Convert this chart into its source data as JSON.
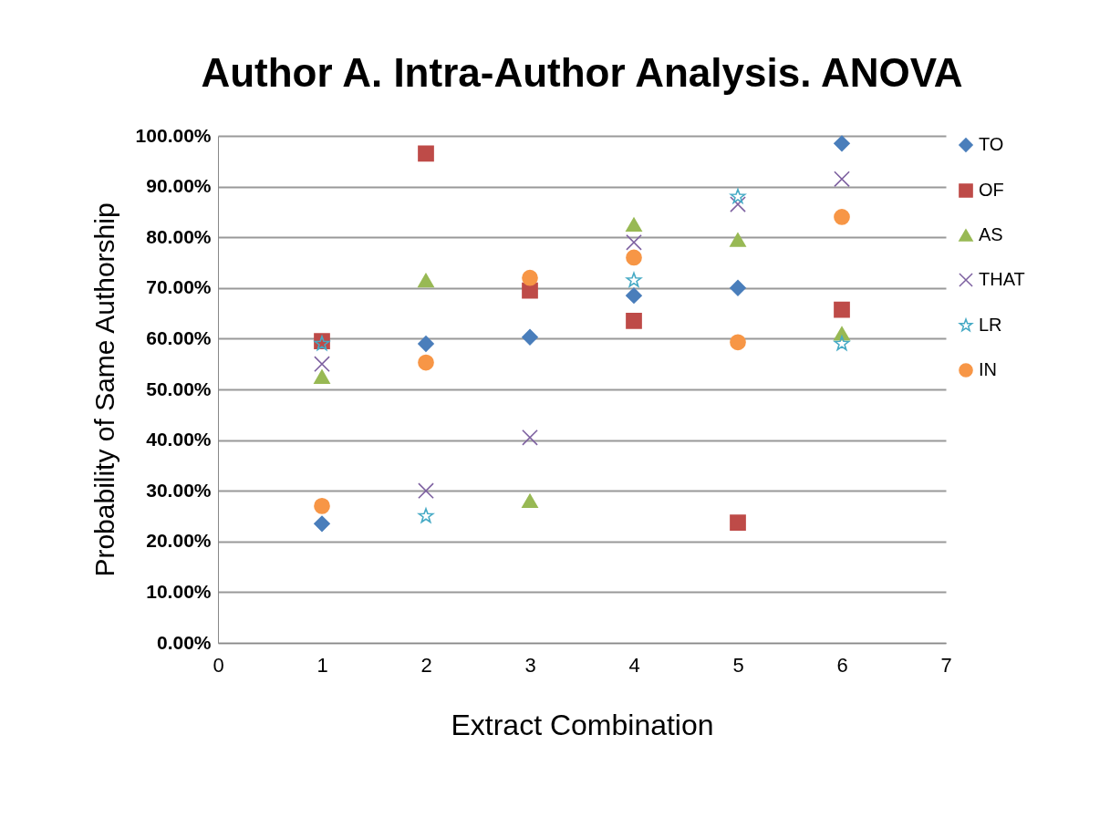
{
  "chart_data": {
    "type": "scatter",
    "title": "Author A. Intra-Author Analysis. ANOVA",
    "xlabel": "Extract Combination",
    "ylabel": "Probability of Same Authorship",
    "x": [
      1,
      2,
      3,
      4,
      5,
      6
    ],
    "series": [
      {
        "name": "TO",
        "color": "#4a7ebb",
        "marker": "diamond",
        "values": [
          23.5,
          59,
          60.3,
          68.5,
          70,
          98.5
        ]
      },
      {
        "name": "OF",
        "color": "#be4b48",
        "marker": "square",
        "values": [
          59.5,
          96.5,
          69.5,
          63.5,
          23.7,
          65.7
        ]
      },
      {
        "name": "AS",
        "color": "#98b954",
        "marker": "triangle",
        "values": [
          52.5,
          71.5,
          28,
          82.5,
          79.5,
          61
        ]
      },
      {
        "name": "THAT",
        "color": "#7d60a0",
        "marker": "cross",
        "values": [
          55,
          30,
          40.5,
          79,
          86.5,
          91.5
        ]
      },
      {
        "name": "LR",
        "color": "#46aac5",
        "marker": "star",
        "values": [
          59,
          25,
          null,
          71.5,
          88,
          59
        ]
      },
      {
        "name": "IN",
        "color": "#f79646",
        "marker": "circle",
        "values": [
          27,
          55.3,
          72,
          76,
          59.3,
          84
        ]
      }
    ],
    "xlim": [
      0,
      7
    ],
    "xticks": [
      0,
      1,
      2,
      3,
      4,
      5,
      6,
      7
    ],
    "ylim": [
      0,
      100
    ],
    "yticks": [
      {
        "value": 0,
        "label": "0.00%"
      },
      {
        "value": 10,
        "label": "10.00%"
      },
      {
        "value": 20,
        "label": "20.00%"
      },
      {
        "value": 30,
        "label": "30.00%"
      },
      {
        "value": 40,
        "label": "40.00%"
      },
      {
        "value": 50,
        "label": "50.00%"
      },
      {
        "value": 60,
        "label": "60.00%"
      },
      {
        "value": 70,
        "label": "70.00%"
      },
      {
        "value": 80,
        "label": "80.00%"
      },
      {
        "value": 90,
        "label": "90.00%"
      },
      {
        "value": 100,
        "label": "100.00%"
      }
    ],
    "grid": "y",
    "legend": "right"
  }
}
